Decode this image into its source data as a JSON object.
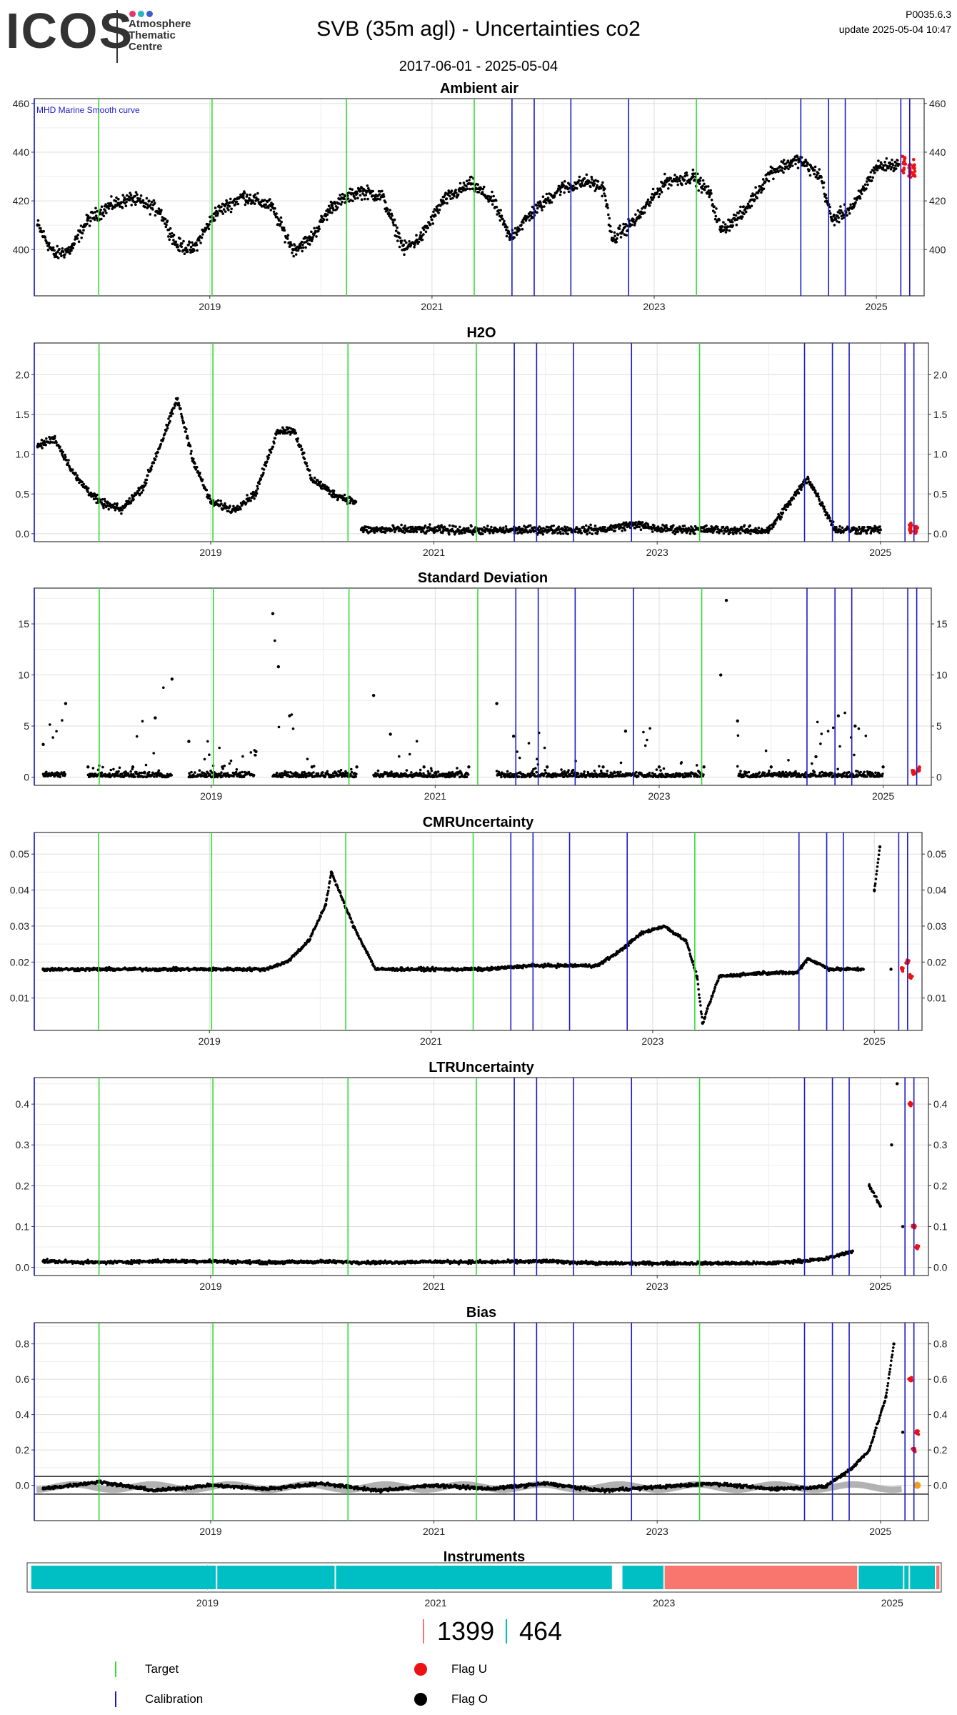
{
  "header": {
    "logo_text": "ICOS",
    "logo_sub": [
      "Atmosphere",
      "Thematic",
      "Centre"
    ],
    "logo_dot_colors": [
      "#e8336e",
      "#27b4c4",
      "#3b5fcf"
    ],
    "title": "SVB  (35m agl) - Uncertainties co2",
    "date_range": "2017-06-01 - 2025-05-04",
    "version": "P0035.6.3",
    "update": "update  2025-05-04 10:47"
  },
  "colors": {
    "target": "#33dd33",
    "calibration": "#1a1acc",
    "flag_u": "#ee1111",
    "flag_o": "#000000",
    "points": "#000000",
    "smooth": "#aaaaaa",
    "orange": "#f0a020",
    "instrument_a": "#00bfc4",
    "instrument_b": "#f8766d",
    "grid": "#dddddd"
  },
  "chart_data": [
    {
      "type": "scatter",
      "title": "Ambient air",
      "annotation": "MHD Marine Smooth curve",
      "x_range": [
        "2017-06-01",
        "2025-05-04"
      ],
      "x_ticks": [
        "2019",
        "2021",
        "2023",
        "2025"
      ],
      "y_ticks": [
        400,
        420,
        440,
        460
      ],
      "ylim": [
        381,
        462
      ],
      "series": [
        {
          "values": [
            [
              2017.45,
              410
            ],
            [
              2017.6,
              398
            ],
            [
              2017.75,
              400
            ],
            [
              2017.9,
              412
            ],
            [
              2018.1,
              418
            ],
            [
              2018.3,
              421
            ],
            [
              2018.55,
              416
            ],
            [
              2018.7,
              402
            ],
            [
              2018.85,
              400
            ],
            [
              2019.05,
              415
            ],
            [
              2019.3,
              422
            ],
            [
              2019.55,
              418
            ],
            [
              2019.75,
              400
            ],
            [
              2019.9,
              404
            ],
            [
              2020.1,
              418
            ],
            [
              2020.35,
              424
            ],
            [
              2020.55,
              422
            ],
            [
              2020.75,
              400
            ],
            [
              2020.9,
              405
            ],
            [
              2021.1,
              420
            ],
            [
              2021.35,
              427
            ],
            [
              2021.55,
              420
            ],
            [
              2021.7,
              405
            ],
            [
              2021.9,
              415
            ],
            [
              2022.15,
              425
            ],
            [
              2022.4,
              428
            ],
            [
              2022.55,
              425
            ],
            [
              2022.62,
              404
            ],
            [
              2022.85,
              413
            ],
            [
              2023.1,
              428
            ],
            [
              2023.35,
              430
            ],
            [
              2023.5,
              423
            ],
            [
              2023.6,
              408
            ],
            [
              2023.8,
              415
            ],
            [
              2024.05,
              432
            ],
            [
              2024.3,
              437
            ],
            [
              2024.5,
              430
            ],
            [
              2024.6,
              412
            ],
            [
              2024.8,
              418
            ],
            [
              2025.0,
              434
            ],
            [
              2025.2,
              435
            ]
          ]
        },
        {
          "name": "Flag U",
          "values": [
            [
              2025.25,
              435
            ],
            [
              2025.3,
              432
            ],
            [
              2025.34,
              433
            ]
          ]
        }
      ]
    },
    {
      "type": "scatter",
      "title": "H2O",
      "x_range": [
        "2017-06-01",
        "2025-05-04"
      ],
      "x_ticks": [
        "2019",
        "2021",
        "2023",
        "2025"
      ],
      "y_ticks": [
        0.0,
        0.5,
        1.0,
        1.5,
        2.0
      ],
      "ylim": [
        -0.1,
        2.4
      ],
      "series": [
        {
          "values": [
            [
              2017.45,
              1.1
            ],
            [
              2017.6,
              1.2
            ],
            [
              2017.8,
              0.7
            ],
            [
              2018.0,
              0.4
            ],
            [
              2018.2,
              0.3
            ],
            [
              2018.4,
              0.6
            ],
            [
              2018.6,
              1.3
            ],
            [
              2018.7,
              1.7
            ],
            [
              2018.85,
              0.9
            ],
            [
              2019.0,
              0.4
            ],
            [
              2019.2,
              0.3
            ],
            [
              2019.4,
              0.5
            ],
            [
              2019.6,
              1.3
            ],
            [
              2019.75,
              1.3
            ],
            [
              2019.9,
              0.7
            ],
            [
              2020.1,
              0.5
            ],
            [
              2020.3,
              0.4
            ],
            [
              2020.35,
              0.05
            ],
            [
              2021.0,
              0.05
            ],
            [
              2021.5,
              0.04
            ],
            [
              2022.0,
              0.05
            ],
            [
              2022.5,
              0.05
            ],
            [
              2022.8,
              0.12
            ],
            [
              2023.0,
              0.06
            ],
            [
              2023.5,
              0.05
            ],
            [
              2024.0,
              0.04
            ],
            [
              2024.35,
              0.7
            ],
            [
              2024.6,
              0.05
            ],
            [
              2025.0,
              0.05
            ]
          ]
        },
        {
          "name": "Flag U",
          "values": [
            [
              2025.27,
              0.05
            ],
            [
              2025.32,
              0.06
            ]
          ]
        }
      ]
    },
    {
      "type": "scatter",
      "title": "Standard Deviation",
      "x_range": [
        "2017-06-01",
        "2025-05-04"
      ],
      "x_ticks": [
        "2019",
        "2021",
        "2023",
        "2025"
      ],
      "y_ticks": [
        0,
        5,
        10,
        15
      ],
      "ylim": [
        -0.8,
        18.5
      ],
      "series": [
        {
          "values": [
            [
              2017.5,
              3.2
            ],
            [
              2017.7,
              7.2
            ],
            [
              2017.9,
              1.0
            ],
            [
              2018.3,
              1.0
            ],
            [
              2018.5,
              5.8
            ],
            [
              2018.65,
              9.6
            ],
            [
              2018.8,
              3.5
            ],
            [
              2019.1,
              1.0
            ],
            [
              2019.4,
              2.5
            ],
            [
              2019.55,
              16.0
            ],
            [
              2019.6,
              10.8
            ],
            [
              2019.7,
              6.0
            ],
            [
              2019.9,
              1.0
            ],
            [
              2020.3,
              1.0
            ],
            [
              2020.45,
              8.0
            ],
            [
              2020.6,
              4.2
            ],
            [
              2020.9,
              1.0
            ],
            [
              2021.3,
              1.0
            ],
            [
              2021.55,
              7.2
            ],
            [
              2021.7,
              4.0
            ],
            [
              2022.0,
              1.0
            ],
            [
              2022.5,
              1.0
            ],
            [
              2022.7,
              4.5
            ],
            [
              2023.0,
              1.0
            ],
            [
              2023.4,
              1.0
            ],
            [
              2023.55,
              10.0
            ],
            [
              2023.6,
              17.3
            ],
            [
              2023.7,
              5.5
            ],
            [
              2024.0,
              1.0
            ],
            [
              2024.4,
              2.0
            ],
            [
              2024.6,
              6.0
            ],
            [
              2024.75,
              5.0
            ],
            [
              2025.0,
              1.0
            ]
          ]
        },
        {
          "name": "Flag U",
          "values": [
            [
              2025.27,
              0.5
            ],
            [
              2025.32,
              0.8
            ]
          ]
        }
      ]
    },
    {
      "type": "scatter",
      "title": "CMRUncertainty",
      "x_range": [
        "2017-06-01",
        "2025-05-04"
      ],
      "x_ticks": [
        "2019",
        "2021",
        "2023",
        "2025"
      ],
      "y_ticks": [
        0.01,
        0.02,
        0.03,
        0.04,
        0.05
      ],
      "ylim": [
        0.001,
        0.056
      ],
      "series": [
        {
          "values": [
            [
              2017.5,
              0.018
            ],
            [
              2018.0,
              0.018
            ],
            [
              2018.5,
              0.018
            ],
            [
              2019.0,
              0.018
            ],
            [
              2019.5,
              0.018
            ],
            [
              2019.7,
              0.02
            ],
            [
              2019.9,
              0.026
            ],
            [
              2020.05,
              0.036
            ],
            [
              2020.1,
              0.045
            ],
            [
              2020.3,
              0.03
            ],
            [
              2020.5,
              0.018
            ],
            [
              2021.0,
              0.018
            ],
            [
              2021.5,
              0.018
            ],
            [
              2021.9,
              0.019
            ],
            [
              2022.3,
              0.019
            ],
            [
              2022.5,
              0.019
            ],
            [
              2022.7,
              0.023
            ],
            [
              2022.9,
              0.028
            ],
            [
              2023.1,
              0.03
            ],
            [
              2023.3,
              0.026
            ],
            [
              2023.4,
              0.016
            ],
            [
              2023.45,
              0.003
            ],
            [
              2023.6,
              0.016
            ],
            [
              2024.0,
              0.017
            ],
            [
              2024.3,
              0.017
            ],
            [
              2024.4,
              0.021
            ],
            [
              2024.6,
              0.018
            ],
            [
              2024.9,
              0.018
            ],
            [
              2025.0,
              0.04
            ],
            [
              2025.05,
              0.052
            ],
            [
              2025.15,
              0.018
            ]
          ]
        },
        {
          "name": "Flag U",
          "values": [
            [
              2025.25,
              0.018
            ],
            [
              2025.3,
              0.02
            ],
            [
              2025.33,
              0.016
            ]
          ]
        }
      ]
    },
    {
      "type": "scatter",
      "title": "LTRUncertainty",
      "x_range": [
        "2017-06-01",
        "2025-05-04"
      ],
      "x_ticks": [
        "2019",
        "2021",
        "2023",
        "2025"
      ],
      "y_ticks": [
        0.0,
        0.1,
        0.2,
        0.3,
        0.4
      ],
      "ylim": [
        -0.02,
        0.465
      ],
      "series": [
        {
          "values": [
            [
              2017.5,
              0.015
            ],
            [
              2018.0,
              0.012
            ],
            [
              2018.5,
              0.015
            ],
            [
              2019.0,
              0.015
            ],
            [
              2019.5,
              0.012
            ],
            [
              2020.0,
              0.014
            ],
            [
              2020.5,
              0.012
            ],
            [
              2021.0,
              0.014
            ],
            [
              2021.5,
              0.013
            ],
            [
              2022.0,
              0.015
            ],
            [
              2022.5,
              0.01
            ],
            [
              2023.0,
              0.01
            ],
            [
              2023.5,
              0.01
            ],
            [
              2024.0,
              0.01
            ],
            [
              2024.5,
              0.02
            ],
            [
              2024.75,
              0.04
            ],
            [
              2024.9,
              0.2
            ],
            [
              2025.0,
              0.15
            ],
            [
              2025.1,
              0.3
            ],
            [
              2025.15,
              0.45
            ],
            [
              2025.2,
              0.1
            ]
          ]
        },
        {
          "name": "Flag U",
          "values": [
            [
              2025.27,
              0.4
            ],
            [
              2025.3,
              0.1
            ],
            [
              2025.33,
              0.05
            ]
          ]
        }
      ]
    },
    {
      "type": "scatter",
      "title": "Bias",
      "x_range": [
        "2017-06-01",
        "2025-05-04"
      ],
      "x_ticks": [
        "2019",
        "2021",
        "2023",
        "2025"
      ],
      "y_ticks": [
        0.0,
        0.2,
        0.4,
        0.6,
        0.8
      ],
      "ylim": [
        -0.2,
        0.92
      ],
      "hlines": [
        0.05,
        -0.05
      ],
      "series": [
        {
          "values": [
            [
              2017.5,
              -0.02
            ],
            [
              2018.0,
              0.02
            ],
            [
              2018.5,
              -0.03
            ],
            [
              2019.0,
              0.0
            ],
            [
              2019.5,
              -0.02
            ],
            [
              2020.0,
              0.01
            ],
            [
              2020.5,
              -0.03
            ],
            [
              2021.0,
              0.0
            ],
            [
              2021.5,
              -0.02
            ],
            [
              2022.0,
              0.01
            ],
            [
              2022.5,
              -0.03
            ],
            [
              2023.0,
              -0.01
            ],
            [
              2023.5,
              0.01
            ],
            [
              2024.0,
              -0.02
            ],
            [
              2024.5,
              -0.01
            ],
            [
              2024.75,
              0.1
            ],
            [
              2024.9,
              0.2
            ],
            [
              2025.05,
              0.5
            ],
            [
              2025.12,
              0.8
            ],
            [
              2025.2,
              0.3
            ]
          ]
        },
        {
          "name": "Flag U",
          "values": [
            [
              2025.27,
              0.6
            ],
            [
              2025.3,
              0.2
            ],
            [
              2025.33,
              0.3
            ]
          ]
        }
      ]
    },
    {
      "type": "bar",
      "title": "Instruments",
      "x_ticks": [
        "2019",
        "2021",
        "2023",
        "2025"
      ],
      "segments": [
        {
          "start": 2017.45,
          "end": 2019.08,
          "instrument": "a"
        },
        {
          "start": 2019.08,
          "end": 2020.12,
          "instrument": "a"
        },
        {
          "start": 2020.12,
          "end": 2022.55,
          "instrument": "a"
        },
        {
          "start": 2022.63,
          "end": 2023.0,
          "instrument": "a"
        },
        {
          "start": 2023.0,
          "end": 2024.7,
          "instrument": "b"
        },
        {
          "start": 2024.7,
          "end": 2025.1,
          "instrument": "a"
        },
        {
          "start": 2025.1,
          "end": 2025.15,
          "instrument": "a"
        },
        {
          "start": 2025.15,
          "end": 2025.38,
          "instrument": "a"
        },
        {
          "start": 2025.38,
          "end": 2025.42,
          "instrument": "b"
        }
      ]
    }
  ],
  "events": {
    "target": [
      2018.0,
      2019.02,
      2020.23,
      2021.38,
      2023.38
    ],
    "calibration": [
      2017.42,
      2021.72,
      2021.92,
      2022.25,
      2022.77,
      2024.32,
      2024.57,
      2024.72,
      2025.22,
      2025.3
    ]
  },
  "counts": {
    "instrument_b": "1399",
    "instrument_a": "464"
  },
  "legend": {
    "target": "Target",
    "calibration": "Calibration",
    "flag_u": "Flag U",
    "flag_o": "Flag O"
  }
}
